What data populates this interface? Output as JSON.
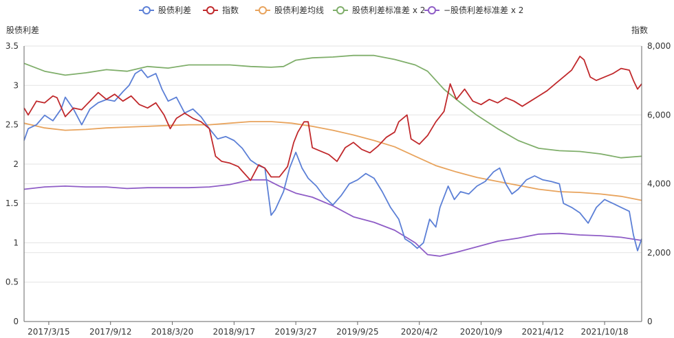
{
  "chart_data": {
    "type": "line",
    "left_axis": {
      "label": "股债利差",
      "min": 0,
      "max": 3.5,
      "ticks": [
        "0",
        "0.5",
        "1",
        "1.5",
        "2",
        "2.5",
        "3",
        "3.5"
      ],
      "tick_values": [
        0,
        0.5,
        1,
        1.5,
        2,
        2.5,
        3,
        3.5
      ]
    },
    "right_axis": {
      "label": "指数",
      "min": 0,
      "max": 8000,
      "ticks": [
        "0",
        "2,000",
        "4,000",
        "6,000",
        "8,000"
      ],
      "tick_values": [
        0,
        2000,
        4000,
        6000,
        8000
      ]
    },
    "x_labels": [
      "2017/3/15",
      "2017/9/12",
      "2018/3/20",
      "2018/9/17",
      "2019/3/27",
      "2019/9/25",
      "2020/4/2",
      "2020/10/9",
      "2021/4/12",
      "2021/10/18"
    ],
    "x_label_positions": [
      0.6,
      2.1,
      3.6,
      5.1,
      6.6,
      8.1,
      9.6,
      11.1,
      12.6,
      14.1
    ],
    "x_domain": [
      0,
      15.0
    ],
    "legend": [
      {
        "name": "股债利差",
        "color": "#5b7fd6"
      },
      {
        "name": "指数",
        "color": "#c0282b"
      },
      {
        "name": "股债利差均线",
        "color": "#e8a35c"
      },
      {
        "name": "股债利差标准差 x 2",
        "color": "#7fae6a"
      },
      {
        "name": "−股债利差标准差 x 2",
        "color": "#8e5cc6"
      }
    ],
    "series": [
      {
        "name": "股债利差",
        "axis": "left",
        "color": "#5b7fd6",
        "points": [
          [
            0,
            2.3
          ],
          [
            0.1,
            2.45
          ],
          [
            0.3,
            2.5
          ],
          [
            0.5,
            2.62
          ],
          [
            0.7,
            2.55
          ],
          [
            0.9,
            2.7
          ],
          [
            1.0,
            2.85
          ],
          [
            1.2,
            2.7
          ],
          [
            1.4,
            2.5
          ],
          [
            1.6,
            2.7
          ],
          [
            1.8,
            2.78
          ],
          [
            2.0,
            2.82
          ],
          [
            2.2,
            2.8
          ],
          [
            2.4,
            2.92
          ],
          [
            2.55,
            3.0
          ],
          [
            2.7,
            3.15
          ],
          [
            2.85,
            3.2
          ],
          [
            3.0,
            3.1
          ],
          [
            3.2,
            3.15
          ],
          [
            3.35,
            2.95
          ],
          [
            3.5,
            2.8
          ],
          [
            3.7,
            2.85
          ],
          [
            3.9,
            2.65
          ],
          [
            4.1,
            2.7
          ],
          [
            4.3,
            2.6
          ],
          [
            4.5,
            2.45
          ],
          [
            4.7,
            2.32
          ],
          [
            4.9,
            2.35
          ],
          [
            5.1,
            2.3
          ],
          [
            5.3,
            2.2
          ],
          [
            5.5,
            2.05
          ],
          [
            5.7,
            1.98
          ],
          [
            5.85,
            1.95
          ],
          [
            6.0,
            1.35
          ],
          [
            6.1,
            1.42
          ],
          [
            6.3,
            1.65
          ],
          [
            6.45,
            1.95
          ],
          [
            6.6,
            2.15
          ],
          [
            6.75,
            1.95
          ],
          [
            6.9,
            1.82
          ],
          [
            7.1,
            1.72
          ],
          [
            7.3,
            1.58
          ],
          [
            7.5,
            1.48
          ],
          [
            7.7,
            1.6
          ],
          [
            7.9,
            1.75
          ],
          [
            8.1,
            1.8
          ],
          [
            8.3,
            1.88
          ],
          [
            8.5,
            1.82
          ],
          [
            8.7,
            1.65
          ],
          [
            8.9,
            1.45
          ],
          [
            9.1,
            1.3
          ],
          [
            9.25,
            1.05
          ],
          [
            9.4,
            1.0
          ],
          [
            9.55,
            0.93
          ],
          [
            9.7,
            1.0
          ],
          [
            9.85,
            1.3
          ],
          [
            10.0,
            1.2
          ],
          [
            10.1,
            1.45
          ],
          [
            10.3,
            1.72
          ],
          [
            10.45,
            1.55
          ],
          [
            10.6,
            1.65
          ],
          [
            10.8,
            1.62
          ],
          [
            11.0,
            1.72
          ],
          [
            11.2,
            1.78
          ],
          [
            11.4,
            1.9
          ],
          [
            11.55,
            1.95
          ],
          [
            11.7,
            1.75
          ],
          [
            11.85,
            1.62
          ],
          [
            12.0,
            1.68
          ],
          [
            12.2,
            1.8
          ],
          [
            12.4,
            1.85
          ],
          [
            12.6,
            1.8
          ],
          [
            12.8,
            1.78
          ],
          [
            13.0,
            1.75
          ],
          [
            13.1,
            1.5
          ],
          [
            13.3,
            1.45
          ],
          [
            13.5,
            1.38
          ],
          [
            13.7,
            1.25
          ],
          [
            13.9,
            1.45
          ],
          [
            14.1,
            1.55
          ],
          [
            14.3,
            1.5
          ],
          [
            14.5,
            1.45
          ],
          [
            14.7,
            1.4
          ],
          [
            14.8,
            1.1
          ],
          [
            14.9,
            0.9
          ],
          [
            15.0,
            1.05
          ]
        ]
      },
      {
        "name": "指数",
        "axis": "right",
        "color": "#c0282b",
        "points": [
          [
            0,
            6200
          ],
          [
            0.1,
            6000
          ],
          [
            0.3,
            6400
          ],
          [
            0.5,
            6350
          ],
          [
            0.7,
            6550
          ],
          [
            0.8,
            6500
          ],
          [
            1.0,
            5950
          ],
          [
            1.2,
            6200
          ],
          [
            1.4,
            6150
          ],
          [
            1.6,
            6400
          ],
          [
            1.8,
            6650
          ],
          [
            2.0,
            6450
          ],
          [
            2.2,
            6600
          ],
          [
            2.4,
            6400
          ],
          [
            2.6,
            6550
          ],
          [
            2.8,
            6300
          ],
          [
            3.0,
            6200
          ],
          [
            3.2,
            6350
          ],
          [
            3.4,
            6000
          ],
          [
            3.55,
            5600
          ],
          [
            3.7,
            5900
          ],
          [
            3.9,
            6050
          ],
          [
            4.1,
            5900
          ],
          [
            4.3,
            5800
          ],
          [
            4.5,
            5600
          ],
          [
            4.65,
            4800
          ],
          [
            4.8,
            4650
          ],
          [
            5.0,
            4600
          ],
          [
            5.2,
            4500
          ],
          [
            5.35,
            4300
          ],
          [
            5.5,
            4100
          ],
          [
            5.7,
            4550
          ],
          [
            5.85,
            4450
          ],
          [
            6.0,
            4200
          ],
          [
            6.2,
            4200
          ],
          [
            6.4,
            4500
          ],
          [
            6.55,
            5200
          ],
          [
            6.65,
            5500
          ],
          [
            6.8,
            5800
          ],
          [
            6.9,
            5800
          ],
          [
            7.0,
            5050
          ],
          [
            7.2,
            4950
          ],
          [
            7.4,
            4850
          ],
          [
            7.6,
            4650
          ],
          [
            7.8,
            5050
          ],
          [
            8.0,
            5200
          ],
          [
            8.2,
            5000
          ],
          [
            8.4,
            4900
          ],
          [
            8.6,
            5100
          ],
          [
            8.8,
            5350
          ],
          [
            9.0,
            5500
          ],
          [
            9.1,
            5800
          ],
          [
            9.3,
            6000
          ],
          [
            9.4,
            5300
          ],
          [
            9.6,
            5150
          ],
          [
            9.8,
            5400
          ],
          [
            10.0,
            5800
          ],
          [
            10.2,
            6100
          ],
          [
            10.35,
            6900
          ],
          [
            10.5,
            6450
          ],
          [
            10.7,
            6750
          ],
          [
            10.9,
            6400
          ],
          [
            11.1,
            6300
          ],
          [
            11.3,
            6450
          ],
          [
            11.5,
            6350
          ],
          [
            11.7,
            6500
          ],
          [
            11.9,
            6400
          ],
          [
            12.1,
            6250
          ],
          [
            12.3,
            6400
          ],
          [
            12.5,
            6550
          ],
          [
            12.7,
            6700
          ],
          [
            12.9,
            6900
          ],
          [
            13.1,
            7100
          ],
          [
            13.3,
            7300
          ],
          [
            13.5,
            7700
          ],
          [
            13.6,
            7600
          ],
          [
            13.75,
            7100
          ],
          [
            13.9,
            7000
          ],
          [
            14.1,
            7100
          ],
          [
            14.3,
            7200
          ],
          [
            14.5,
            7350
          ],
          [
            14.7,
            7300
          ],
          [
            14.8,
            7000
          ],
          [
            14.9,
            6750
          ],
          [
            15.0,
            6900
          ]
        ]
      },
      {
        "name": "股债利差均线",
        "axis": "left",
        "color": "#e8a35c",
        "points": [
          [
            0,
            2.52
          ],
          [
            0.5,
            2.46
          ],
          [
            1.0,
            2.43
          ],
          [
            1.5,
            2.44
          ],
          [
            2.0,
            2.46
          ],
          [
            2.5,
            2.47
          ],
          [
            3.0,
            2.48
          ],
          [
            3.5,
            2.49
          ],
          [
            4.0,
            2.5
          ],
          [
            4.5,
            2.5
          ],
          [
            5.0,
            2.52
          ],
          [
            5.5,
            2.54
          ],
          [
            6.0,
            2.54
          ],
          [
            6.5,
            2.52
          ],
          [
            7.0,
            2.48
          ],
          [
            7.5,
            2.43
          ],
          [
            8.0,
            2.37
          ],
          [
            8.5,
            2.3
          ],
          [
            9.0,
            2.22
          ],
          [
            9.5,
            2.1
          ],
          [
            10.0,
            1.98
          ],
          [
            10.5,
            1.9
          ],
          [
            11.0,
            1.83
          ],
          [
            11.5,
            1.78
          ],
          [
            12.0,
            1.73
          ],
          [
            12.5,
            1.68
          ],
          [
            13.0,
            1.65
          ],
          [
            13.5,
            1.64
          ],
          [
            14.0,
            1.62
          ],
          [
            14.5,
            1.59
          ],
          [
            15.0,
            1.54
          ]
        ]
      },
      {
        "name": "股债利差标准差 x 2",
        "axis": "left",
        "color": "#7fae6a",
        "points": [
          [
            0,
            3.28
          ],
          [
            0.5,
            3.18
          ],
          [
            1.0,
            3.13
          ],
          [
            1.5,
            3.16
          ],
          [
            2.0,
            3.2
          ],
          [
            2.5,
            3.18
          ],
          [
            3.0,
            3.24
          ],
          [
            3.5,
            3.22
          ],
          [
            4.0,
            3.26
          ],
          [
            4.5,
            3.26
          ],
          [
            5.0,
            3.26
          ],
          [
            5.5,
            3.24
          ],
          [
            6.0,
            3.23
          ],
          [
            6.3,
            3.24
          ],
          [
            6.6,
            3.32
          ],
          [
            7.0,
            3.35
          ],
          [
            7.5,
            3.36
          ],
          [
            8.0,
            3.38
          ],
          [
            8.5,
            3.38
          ],
          [
            9.0,
            3.33
          ],
          [
            9.5,
            3.26
          ],
          [
            9.8,
            3.18
          ],
          [
            10.2,
            2.95
          ],
          [
            10.6,
            2.78
          ],
          [
            11.0,
            2.62
          ],
          [
            11.5,
            2.45
          ],
          [
            12.0,
            2.3
          ],
          [
            12.5,
            2.2
          ],
          [
            13.0,
            2.17
          ],
          [
            13.5,
            2.16
          ],
          [
            14.0,
            2.13
          ],
          [
            14.5,
            2.08
          ],
          [
            15.0,
            2.1
          ]
        ]
      },
      {
        "name": "−股债利差标准差 x 2",
        "axis": "left",
        "color": "#8e5cc6",
        "points": [
          [
            0,
            1.68
          ],
          [
            0.5,
            1.71
          ],
          [
            1.0,
            1.72
          ],
          [
            1.5,
            1.71
          ],
          [
            2.0,
            1.71
          ],
          [
            2.5,
            1.69
          ],
          [
            3.0,
            1.7
          ],
          [
            3.5,
            1.7
          ],
          [
            4.0,
            1.7
          ],
          [
            4.5,
            1.71
          ],
          [
            5.0,
            1.74
          ],
          [
            5.5,
            1.8
          ],
          [
            5.9,
            1.8
          ],
          [
            6.2,
            1.72
          ],
          [
            6.6,
            1.63
          ],
          [
            7.0,
            1.58
          ],
          [
            7.5,
            1.47
          ],
          [
            8.0,
            1.33
          ],
          [
            8.5,
            1.26
          ],
          [
            9.0,
            1.16
          ],
          [
            9.5,
            1.0
          ],
          [
            9.8,
            0.85
          ],
          [
            10.1,
            0.83
          ],
          [
            10.5,
            0.88
          ],
          [
            11.0,
            0.95
          ],
          [
            11.5,
            1.02
          ],
          [
            12.0,
            1.06
          ],
          [
            12.5,
            1.11
          ],
          [
            13.0,
            1.12
          ],
          [
            13.5,
            1.1
          ],
          [
            14.0,
            1.09
          ],
          [
            14.5,
            1.07
          ],
          [
            15.0,
            1.03
          ]
        ]
      }
    ]
  }
}
